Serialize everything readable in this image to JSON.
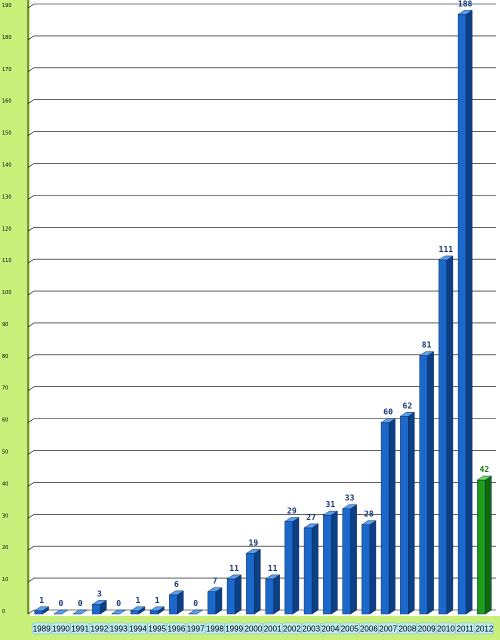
{
  "chart_data": {
    "type": "bar",
    "title": "",
    "xlabel": "",
    "ylabel": "",
    "ylim": [
      0,
      190
    ],
    "yticks": [
      0,
      10,
      20,
      30,
      40,
      50,
      60,
      70,
      80,
      90,
      100,
      110,
      120,
      130,
      140,
      150,
      160,
      170,
      180,
      190
    ],
    "grid": true,
    "categories": [
      "1989",
      "1990",
      "1991",
      "1992",
      "1993",
      "1994",
      "1995",
      "1996",
      "1997",
      "1998",
      "1999",
      "2000",
      "2001",
      "2002",
      "2003",
      "2004",
      "2005",
      "2006",
      "2007",
      "2008",
      "2009",
      "2010",
      "2011",
      "2012"
    ],
    "values": [
      1,
      0,
      0,
      3,
      0,
      1,
      1,
      6,
      0,
      7,
      11,
      19,
      11,
      29,
      27,
      31,
      33,
      28,
      60,
      62,
      81,
      111,
      188,
      42
    ],
    "highlight_category": "2012",
    "colors": {
      "bar": "#1f6fd6",
      "bar_top": "#5aa0f0",
      "bar_side": "#0d3f85",
      "highlight_bar": "#22a41a",
      "highlight_top": "#6fe05f",
      "highlight_side": "#0f6a0a",
      "value_label": "#14367a",
      "highlight_label": "#1a7a12",
      "left_panel": "#c8f07a",
      "bottom_panel": "#c8f07a",
      "xlabel_box": "#c0ecf4",
      "plot_bg": "#ffffff",
      "grid": "#000000"
    }
  }
}
